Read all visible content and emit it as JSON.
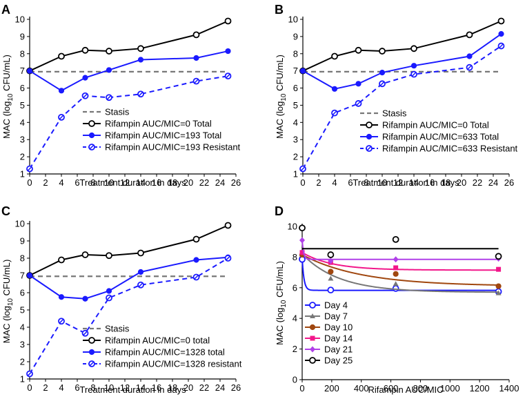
{
  "chart_data": [
    {
      "panel": "A",
      "type": "line",
      "xlabel": "Treatment duration in days",
      "ylabel_main": "MAC (log",
      "ylabel_sub": "10",
      "ylabel_tail": " CFU/mL)",
      "xlim": [
        0,
        26
      ],
      "ylim": [
        1,
        10
      ],
      "xticks": [
        0,
        2,
        4,
        6,
        8,
        10,
        12,
        14,
        16,
        18,
        20,
        22,
        24,
        26
      ],
      "yticks": [
        1,
        2,
        3,
        4,
        5,
        6,
        7,
        8,
        9,
        10
      ],
      "legend_position": "lower-middle",
      "series": [
        {
          "name": "Stasis",
          "style": "stasis",
          "x": [
            0,
            25
          ],
          "y": [
            6.95,
            6.95
          ]
        },
        {
          "name": "Rifampin AUC/MIC=0 Total",
          "style": "black-open",
          "x": [
            0,
            4,
            7,
            10,
            14,
            21,
            25
          ],
          "y": [
            7.0,
            7.85,
            8.2,
            8.15,
            8.3,
            9.1,
            9.9
          ]
        },
        {
          "name": "Rifampin AUC/MIC=193 Total",
          "style": "blue-filled",
          "x": [
            0,
            4,
            7,
            10,
            14,
            21,
            25
          ],
          "y": [
            7.0,
            5.85,
            6.6,
            7.05,
            7.65,
            7.75,
            8.15
          ]
        },
        {
          "name": "Rifampin AUC/MIC=193 Resistant",
          "style": "blue-open-dashed",
          "x": [
            0,
            4,
            7,
            10,
            14,
            21,
            25
          ],
          "y": [
            1.3,
            4.3,
            5.55,
            5.45,
            5.65,
            6.4,
            6.7
          ]
        }
      ]
    },
    {
      "panel": "B",
      "type": "line",
      "xlabel": "Treatment duration in days",
      "ylabel_main": "MAC (log",
      "ylabel_sub": "10",
      "ylabel_tail": " CFU/mL)",
      "xlim": [
        0,
        26
      ],
      "ylim": [
        1,
        10
      ],
      "xticks": [
        0,
        2,
        4,
        6,
        8,
        10,
        12,
        14,
        16,
        18,
        20,
        22,
        24,
        26
      ],
      "yticks": [
        1,
        2,
        3,
        4,
        5,
        6,
        7,
        8,
        9,
        10
      ],
      "legend_position": "lower-middle",
      "series": [
        {
          "name": "Stasis",
          "style": "stasis",
          "x": [
            0,
            25
          ],
          "y": [
            6.95,
            6.95
          ]
        },
        {
          "name": "Rifampin AUC/MIC=0 Total",
          "style": "black-open",
          "x": [
            0,
            4,
            7,
            10,
            14,
            21,
            25
          ],
          "y": [
            7.0,
            7.85,
            8.2,
            8.15,
            8.3,
            9.1,
            9.9
          ]
        },
        {
          "name": "Rifampin AUC/MIC=633 Total",
          "style": "blue-filled",
          "x": [
            0,
            4,
            7,
            10,
            14,
            21,
            25
          ],
          "y": [
            7.0,
            5.95,
            6.25,
            6.9,
            7.3,
            7.85,
            9.15
          ]
        },
        {
          "name": "Rifampin AUC/MIC=633 Resistant",
          "style": "blue-open-dashed",
          "x": [
            0,
            4,
            7,
            10,
            14,
            21,
            25
          ],
          "y": [
            1.3,
            4.55,
            5.1,
            6.25,
            6.8,
            7.2,
            8.45
          ]
        }
      ]
    },
    {
      "panel": "C",
      "type": "line",
      "xlabel": "Treatment duration in days",
      "ylabel_main": "MAC (log",
      "ylabel_sub": "10",
      "ylabel_tail": " CFU/mL)",
      "xlim": [
        0,
        26
      ],
      "ylim": [
        1,
        10
      ],
      "xticks": [
        0,
        2,
        4,
        6,
        8,
        10,
        12,
        14,
        16,
        18,
        20,
        22,
        24,
        26
      ],
      "yticks": [
        1,
        2,
        3,
        4,
        5,
        6,
        7,
        8,
        9,
        10
      ],
      "legend_position": "lower-middle",
      "series": [
        {
          "name": "Stasis",
          "style": "stasis",
          "x": [
            0,
            25
          ],
          "y": [
            6.95,
            6.95
          ]
        },
        {
          "name": "Rifampin AUC/MIC=0 total",
          "style": "black-open",
          "x": [
            0,
            4,
            7,
            10,
            14,
            21,
            25
          ],
          "y": [
            7.0,
            7.9,
            8.2,
            8.15,
            8.3,
            9.1,
            9.9
          ]
        },
        {
          "name": "Rifampin AUC/MIC=1328 total",
          "style": "blue-filled",
          "x": [
            0,
            4,
            7,
            10,
            14,
            21,
            25
          ],
          "y": [
            7.0,
            5.75,
            5.65,
            6.1,
            7.2,
            7.9,
            8.05
          ]
        },
        {
          "name": "Rifampin AUC/MIC=1328 resistant",
          "style": "blue-open-dashed",
          "x": [
            0,
            4,
            7,
            10,
            14,
            21,
            25
          ],
          "y": [
            1.3,
            4.35,
            3.65,
            5.7,
            6.45,
            6.9,
            8.0
          ]
        }
      ]
    },
    {
      "panel": "D",
      "type": "scatter-with-fit",
      "xlabel": "Rifampin AUC/MIC",
      "ylabel_main": "MAC (log",
      "ylabel_sub": "10",
      "ylabel_tail": " CFU/mL)",
      "xlim": [
        0,
        1400
      ],
      "ylim": [
        0,
        10
      ],
      "xticks": [
        0,
        200,
        400,
        600,
        800,
        1000,
        1200,
        1400
      ],
      "yticks": [
        0,
        2,
        4,
        6,
        8,
        10
      ],
      "legend_position": "lower-left",
      "series": [
        {
          "name": "Day 4",
          "color": "#1a1aff",
          "marker": "open-circle",
          "x": [
            0,
            193,
            633,
            1328
          ],
          "y": [
            7.85,
            5.85,
            5.95,
            5.75
          ],
          "fit": {
            "top": 7.9,
            "bottom": 5.83,
            "k": 0.08
          }
        },
        {
          "name": "Day 7",
          "color": "#777777",
          "marker": "triangle",
          "x": [
            0,
            193,
            633,
            1328
          ],
          "y": [
            8.2,
            6.6,
            6.25,
            5.65
          ],
          "fit": {
            "top": 8.2,
            "bottom": 5.7,
            "k": 0.004
          }
        },
        {
          "name": "Day 10",
          "color": "#a0470f",
          "marker": "filled-circle",
          "x": [
            0,
            193,
            633,
            1328
          ],
          "y": [
            8.15,
            7.05,
            6.9,
            6.1
          ],
          "fit": {
            "top": 8.15,
            "bottom": 6.1,
            "k": 0.0025
          }
        },
        {
          "name": "Day 14",
          "color": "#f2178a",
          "marker": "square",
          "x": [
            0,
            193,
            633,
            1328
          ],
          "y": [
            8.3,
            7.65,
            7.3,
            7.2
          ],
          "fit": {
            "top": 8.3,
            "bottom": 7.15,
            "k": 0.005
          }
        },
        {
          "name": "Day 21",
          "color": "#b040e8",
          "marker": "diamond",
          "x": [
            0,
            193,
            633,
            1328
          ],
          "y": [
            9.1,
            7.75,
            7.85,
            7.9
          ],
          "fit": {
            "top": 9.1,
            "bottom": 7.85,
            "k": 0.1
          }
        },
        {
          "name": "Day 25",
          "color": "#000000",
          "marker": "open-circle",
          "x": [
            0,
            193,
            633,
            1328
          ],
          "y": [
            9.9,
            8.15,
            9.15,
            8.05
          ],
          "fit": {
            "top": 8.55,
            "bottom": 8.55,
            "k": 0.01
          }
        }
      ]
    }
  ]
}
